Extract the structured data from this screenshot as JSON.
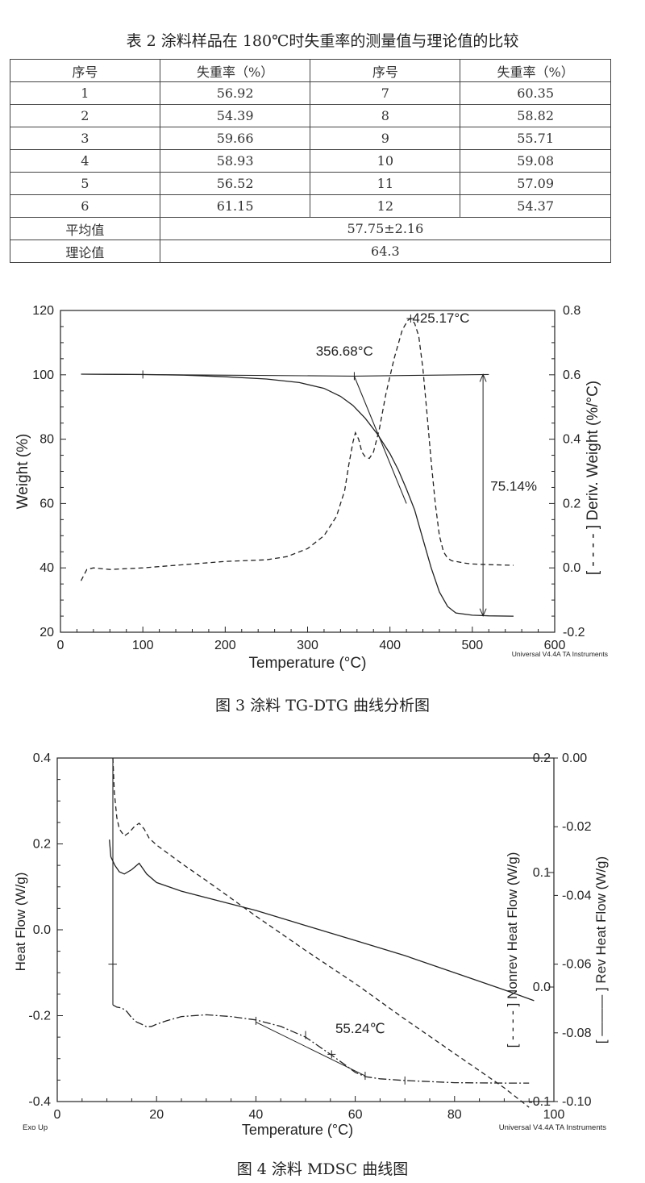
{
  "table2": {
    "caption": "表 2 涂料样品在 180℃时失重率的测量值与理论值的比较",
    "headers": [
      "序号",
      "失重率（%）",
      "序号",
      "失重率（%）"
    ],
    "rows": [
      [
        "1",
        "56.92",
        "7",
        "60.35"
      ],
      [
        "2",
        "54.39",
        "8",
        "58.82"
      ],
      [
        "3",
        "59.66",
        "9",
        "55.71"
      ],
      [
        "4",
        "58.93",
        "10",
        "59.08"
      ],
      [
        "5",
        "56.52",
        "11",
        "57.09"
      ],
      [
        "6",
        "61.15",
        "12",
        "54.37"
      ]
    ],
    "mean_label": "平均值",
    "mean_value": "57.75±2.16",
    "theory_label": "理论值",
    "theory_value": "64.3"
  },
  "figure3": {
    "caption": "图 3 涂料 TG-DTG 曲线分析图",
    "software_note": "Universal V4.4A TA Instruments",
    "annotations": {
      "peak": "425.17°C",
      "onset": "356.68°C",
      "loss": "75.14%"
    }
  },
  "figure4": {
    "caption": "图 4 涂料 MDSC 曲线图",
    "software_note": "Universal V4.4A TA Instruments",
    "exo_label": "Exo Up",
    "annotations": {
      "tg": "55.24℃"
    }
  },
  "chart_data": [
    {
      "type": "line",
      "xlabel": "Temperature (°C)",
      "ylabel": "Weight (%)",
      "y2label": "[ - - - - ] Deriv. Weight (%/°C)",
      "xlim": [
        0,
        600
      ],
      "ylim": [
        20,
        120
      ],
      "y2lim": [
        -0.2,
        0.8
      ],
      "xticks": [
        "0",
        "100",
        "200",
        "300",
        "400",
        "500",
        "600"
      ],
      "yticks": [
        "20",
        "40",
        "60",
        "80",
        "100",
        "120"
      ],
      "y2ticks": [
        "-0.2",
        "0.0",
        "0.2",
        "0.4",
        "0.6",
        "0.8"
      ],
      "series": [
        {
          "axis": "left",
          "style": "solid",
          "x": [
            25,
            100,
            150,
            200,
            250,
            290,
            320,
            340,
            355,
            370,
            385,
            400,
            410,
            420,
            430,
            440,
            450,
            460,
            470,
            480,
            500,
            520,
            550
          ],
          "y": [
            100.2,
            100.1,
            99.9,
            99.4,
            98.7,
            97.6,
            95.8,
            93.3,
            90.5,
            86.5,
            81.5,
            75.5,
            70.5,
            64.5,
            58,
            49,
            40,
            32.5,
            28,
            26,
            25.3,
            25.1,
            25
          ]
        },
        {
          "axis": "right",
          "style": "dashed",
          "x": [
            25,
            32,
            40,
            60,
            100,
            150,
            200,
            250,
            275,
            300,
            320,
            335,
            345,
            350,
            355,
            358,
            362,
            366,
            370,
            375,
            380,
            387,
            395,
            405,
            415,
            422,
            425,
            430,
            435,
            440,
            445,
            450,
            455,
            460,
            465,
            470,
            475,
            480,
            490,
            500,
            520,
            550
          ],
          "y": [
            -0.04,
            -0.005,
            0.0,
            -0.005,
            0.0,
            0.01,
            0.02,
            0.025,
            0.035,
            0.06,
            0.1,
            0.16,
            0.24,
            0.32,
            0.39,
            0.42,
            0.4,
            0.36,
            0.345,
            0.34,
            0.36,
            0.43,
            0.54,
            0.65,
            0.74,
            0.77,
            0.775,
            0.76,
            0.72,
            0.62,
            0.48,
            0.33,
            0.2,
            0.1,
            0.05,
            0.03,
            0.022,
            0.02,
            0.015,
            0.012,
            0.01,
            0.008
          ]
        },
        {
          "axis": "left",
          "style": "tangent",
          "x": [
            25,
            356.68,
            520
          ],
          "y": [
            100.2,
            99.6,
            100.1
          ]
        },
        {
          "axis": "left",
          "style": "tangent",
          "x": [
            356.68,
            420
          ],
          "y": [
            99.6,
            60
          ]
        }
      ]
    },
    {
      "type": "line",
      "xlabel": "Temperature (°C)",
      "ylabel": "Heat Flow (W/g)",
      "y2label": "[ - - - - ] Nonrev Heat Flow (W/g)",
      "y3label": "[ ——— ] Rev Heat Flow (W/g)",
      "xlim": [
        0,
        100
      ],
      "ylim": [
        -0.4,
        0.4
      ],
      "y2lim": [
        -0.1,
        0.2
      ],
      "y3lim": [
        -0.1,
        0.0
      ],
      "xticks": [
        "0",
        "20",
        "40",
        "60",
        "80",
        "100"
      ],
      "yticks": [
        "-0.4",
        "-0.2",
        "0.0",
        "0.2",
        "0.4"
      ],
      "y2ticks": [
        "-0.1",
        "0.0",
        "0.1",
        "0.2"
      ],
      "y3ticks": [
        "-0.10",
        "-0.08",
        "-0.06",
        "-0.04",
        "-0.02",
        "0.00"
      ],
      "series": [
        {
          "axis": "left",
          "style": "solid",
          "x": [
            10.5,
            10.8,
            11.2,
            11.6,
            12.5,
            13.5,
            15,
            16.5,
            18,
            20,
            25,
            30,
            40,
            50,
            60,
            70,
            80,
            90,
            96
          ],
          "y": [
            0.21,
            0.17,
            0.16,
            0.15,
            0.135,
            0.13,
            0.14,
            0.155,
            0.13,
            0.11,
            0.09,
            0.075,
            0.045,
            0.01,
            -0.025,
            -0.06,
            -0.1,
            -0.14,
            -0.165
          ]
        },
        {
          "axis": "right",
          "style": "dashed",
          "x": [
            11.2,
            11.5,
            12,
            12.5,
            13.5,
            14.5,
            15.5,
            16.5,
            17.5,
            18.5,
            20,
            25,
            30,
            40,
            50,
            60,
            70,
            80,
            90,
            95
          ],
          "y": [
            0.2,
            0.17,
            0.148,
            0.138,
            0.132,
            0.135,
            0.14,
            0.143,
            0.138,
            0.13,
            0.124,
            0.108,
            0.093,
            0.062,
            0.032,
            0.003,
            -0.028,
            -0.058,
            -0.088,
            -0.105
          ]
        },
        {
          "axis": "left",
          "style": "dashdot",
          "x": [
            11.2,
            12,
            13,
            14,
            15,
            16,
            17,
            18,
            19,
            20,
            22,
            25,
            30,
            35,
            40,
            45,
            50,
            55,
            58,
            60,
            62,
            65,
            70,
            80,
            90,
            95
          ],
          "y": [
            -0.175,
            -0.18,
            -0.182,
            -0.19,
            -0.205,
            -0.215,
            -0.22,
            -0.226,
            -0.225,
            -0.22,
            -0.212,
            -0.202,
            -0.198,
            -0.202,
            -0.21,
            -0.225,
            -0.25,
            -0.29,
            -0.315,
            -0.332,
            -0.342,
            -0.347,
            -0.351,
            -0.356,
            -0.357,
            -0.357
          ]
        },
        {
          "axis": "left",
          "style": "tangent",
          "x": [
            40,
            62
          ],
          "y": [
            -0.215,
            -0.34
          ]
        }
      ]
    }
  ]
}
